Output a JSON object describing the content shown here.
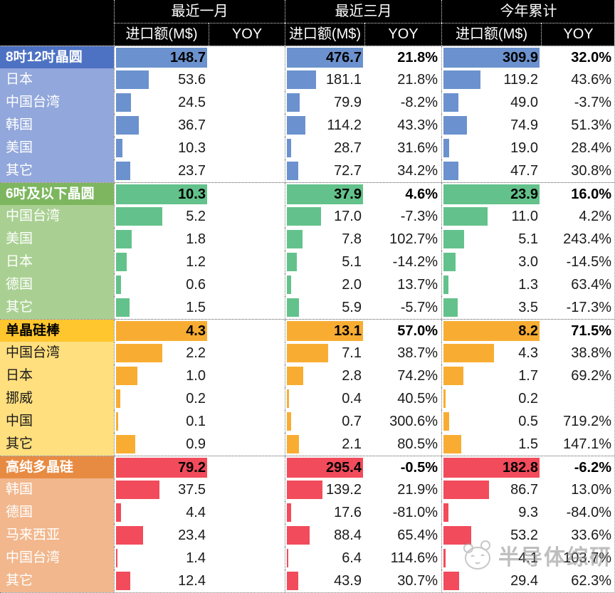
{
  "chart_data": {
    "type": "table",
    "title": "",
    "column_groups": [
      "最近一月",
      "最近三月",
      "今年累计"
    ],
    "sub_columns": [
      "进口额(M$)",
      "YOY"
    ],
    "groups": [
      {
        "name": "8吋12吋晶圆",
        "colors": {
          "header_bg": "#4d72c3",
          "row_bg": "#92a7db",
          "bar": "#6b92ce",
          "header_text": "#ffffff",
          "row_text": "#ffffff"
        },
        "total": {
          "m1": "148.7",
          "m1_yoy": "",
          "m3": "476.7",
          "m3_yoy": "21.8%",
          "ytd": "309.9",
          "ytd_yoy": "32.0%"
        },
        "rows": [
          {
            "name": "日本",
            "m1": "53.6",
            "m1_yoy": "",
            "m3": "181.1",
            "m3_yoy": "21.8%",
            "ytd": "119.2",
            "ytd_yoy": "43.6%"
          },
          {
            "name": "中国台湾",
            "m1": "24.5",
            "m1_yoy": "",
            "m3": "79.9",
            "m3_yoy": "-8.2%",
            "ytd": "49.0",
            "ytd_yoy": "-3.7%"
          },
          {
            "name": "韩国",
            "m1": "36.7",
            "m1_yoy": "",
            "m3": "114.2",
            "m3_yoy": "43.3%",
            "ytd": "74.9",
            "ytd_yoy": "51.3%"
          },
          {
            "name": "美国",
            "m1": "10.3",
            "m1_yoy": "",
            "m3": "28.7",
            "m3_yoy": "31.6%",
            "ytd": "19.0",
            "ytd_yoy": "28.4%"
          },
          {
            "name": "其它",
            "m1": "23.7",
            "m1_yoy": "",
            "m3": "72.7",
            "m3_yoy": "34.2%",
            "ytd": "47.7",
            "ytd_yoy": "30.8%"
          }
        ]
      },
      {
        "name": "6吋及以下晶圆",
        "colors": {
          "header_bg": "#7db65f",
          "row_bg": "#a9d092",
          "bar": "#63c28b",
          "header_text": "#ffffff",
          "row_text": "#ffffff"
        },
        "total": {
          "m1": "10.3",
          "m1_yoy": "",
          "m3": "37.9",
          "m3_yoy": "4.6%",
          "ytd": "23.9",
          "ytd_yoy": "16.0%"
        },
        "rows": [
          {
            "name": "中国台湾",
            "m1": "5.2",
            "m1_yoy": "",
            "m3": "17.0",
            "m3_yoy": "-7.3%",
            "ytd": "11.0",
            "ytd_yoy": "4.2%"
          },
          {
            "name": "美国",
            "m1": "1.8",
            "m1_yoy": "",
            "m3": "7.8",
            "m3_yoy": "102.7%",
            "ytd": "5.1",
            "ytd_yoy": "243.4%"
          },
          {
            "name": "日本",
            "m1": "1.2",
            "m1_yoy": "",
            "m3": "5.1",
            "m3_yoy": "-14.2%",
            "ytd": "3.0",
            "ytd_yoy": "-14.5%"
          },
          {
            "name": "德国",
            "m1": "0.6",
            "m1_yoy": "",
            "m3": "2.0",
            "m3_yoy": "13.7%",
            "ytd": "1.3",
            "ytd_yoy": "63.4%"
          },
          {
            "name": "其它",
            "m1": "1.5",
            "m1_yoy": "",
            "m3": "5.9",
            "m3_yoy": "-5.7%",
            "ytd": "3.5",
            "ytd_yoy": "-17.3%"
          }
        ]
      },
      {
        "name": "单晶硅棒",
        "colors": {
          "header_bg": "#ffc62e",
          "row_bg": "#ffdf7e",
          "bar": "#f8ad32",
          "header_text": "#000000",
          "row_text": "#1a1a1a"
        },
        "total": {
          "m1": "4.3",
          "m1_yoy": "",
          "m3": "13.1",
          "m3_yoy": "57.0%",
          "ytd": "8.2",
          "ytd_yoy": "71.5%"
        },
        "rows": [
          {
            "name": "中国台湾",
            "m1": "2.2",
            "m1_yoy": "",
            "m3": "7.1",
            "m3_yoy": "38.7%",
            "ytd": "4.3",
            "ytd_yoy": "38.8%"
          },
          {
            "name": "日本",
            "m1": "1.0",
            "m1_yoy": "",
            "m3": "2.8",
            "m3_yoy": "74.2%",
            "ytd": "1.7",
            "ytd_yoy": "69.2%"
          },
          {
            "name": "挪威",
            "m1": "0.2",
            "m1_yoy": "",
            "m3": "0.4",
            "m3_yoy": "40.5%",
            "ytd": "0.2",
            "ytd_yoy": ""
          },
          {
            "name": "中国",
            "m1": "0.1",
            "m1_yoy": "",
            "m3": "0.7",
            "m3_yoy": "300.6%",
            "ytd": "0.5",
            "ytd_yoy": "719.2%"
          },
          {
            "name": "其它",
            "m1": "0.9",
            "m1_yoy": "",
            "m3": "2.1",
            "m3_yoy": "80.5%",
            "ytd": "1.5",
            "ytd_yoy": "147.1%"
          }
        ]
      },
      {
        "name": "高纯多晶硅",
        "colors": {
          "header_bg": "#e88b42",
          "row_bg": "#f2b78d",
          "bar": "#f24b5b",
          "header_text": "#ffffff",
          "row_text": "#ffffff"
        },
        "total": {
          "m1": "79.2",
          "m1_yoy": "",
          "m3": "295.4",
          "m3_yoy": "-0.5%",
          "ytd": "182.8",
          "ytd_yoy": "-6.2%"
        },
        "rows": [
          {
            "name": "韩国",
            "m1": "37.5",
            "m1_yoy": "",
            "m3": "139.2",
            "m3_yoy": "21.9%",
            "ytd": "86.7",
            "ytd_yoy": "13.0%"
          },
          {
            "name": "德国",
            "m1": "4.4",
            "m1_yoy": "",
            "m3": "17.6",
            "m3_yoy": "-81.0%",
            "ytd": "9.3",
            "ytd_yoy": "-84.0%"
          },
          {
            "name": "马来西亚",
            "m1": "23.4",
            "m1_yoy": "",
            "m3": "88.4",
            "m3_yoy": "65.4%",
            "ytd": "53.2",
            "ytd_yoy": "33.6%"
          },
          {
            "name": "中国台湾",
            "m1": "1.4",
            "m1_yoy": "",
            "m3": "6.4",
            "m3_yoy": "114.6%",
            "ytd": "4.1",
            "ytd_yoy": "103.7%"
          },
          {
            "name": "其它",
            "m1": "12.4",
            "m1_yoy": "",
            "m3": "43.9",
            "m3_yoy": "30.7%",
            "ytd": "29.4",
            "ytd_yoy": "62.3%"
          }
        ]
      }
    ]
  },
  "watermark": {
    "text": "半导体综研",
    "logo": "panda-icon"
  }
}
